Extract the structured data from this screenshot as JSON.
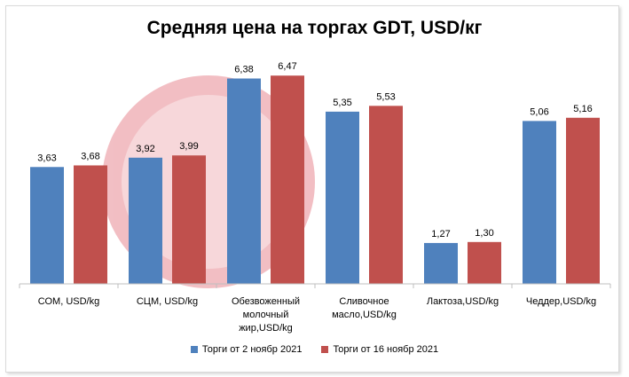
{
  "chart_data": {
    "type": "bar",
    "title": "Средняя цена на торгах GDT, USD/кг",
    "categories": [
      [
        "СОМ, USD/kg"
      ],
      [
        "СЦМ, USD/kg"
      ],
      [
        "Обезвоженный",
        "молочный",
        "жир,USD/kg"
      ],
      [
        "Сливочное",
        "масло,USD/kg"
      ],
      [
        "Лактоза,USD/kg"
      ],
      [
        "Чеддер,USD/kg"
      ]
    ],
    "series": [
      {
        "name": "Торги от 2 ноябр 2021",
        "color": "#4f81bd",
        "values": [
          3.63,
          3.92,
          6.38,
          5.35,
          1.27,
          5.06
        ],
        "labels": [
          "3,63",
          "3,92",
          "6,38",
          "5,35",
          "1,27",
          "5,06"
        ]
      },
      {
        "name": "Торги от 16 ноябр 2021",
        "color": "#c0504d",
        "values": [
          3.68,
          3.99,
          6.47,
          5.53,
          1.3,
          5.16
        ],
        "labels": [
          "3,68",
          "3,99",
          "6,47",
          "5,53",
          "1,30",
          "5,16"
        ]
      }
    ],
    "ylim": [
      0,
      7
    ],
    "grid": false,
    "legend_position": "bottom"
  }
}
